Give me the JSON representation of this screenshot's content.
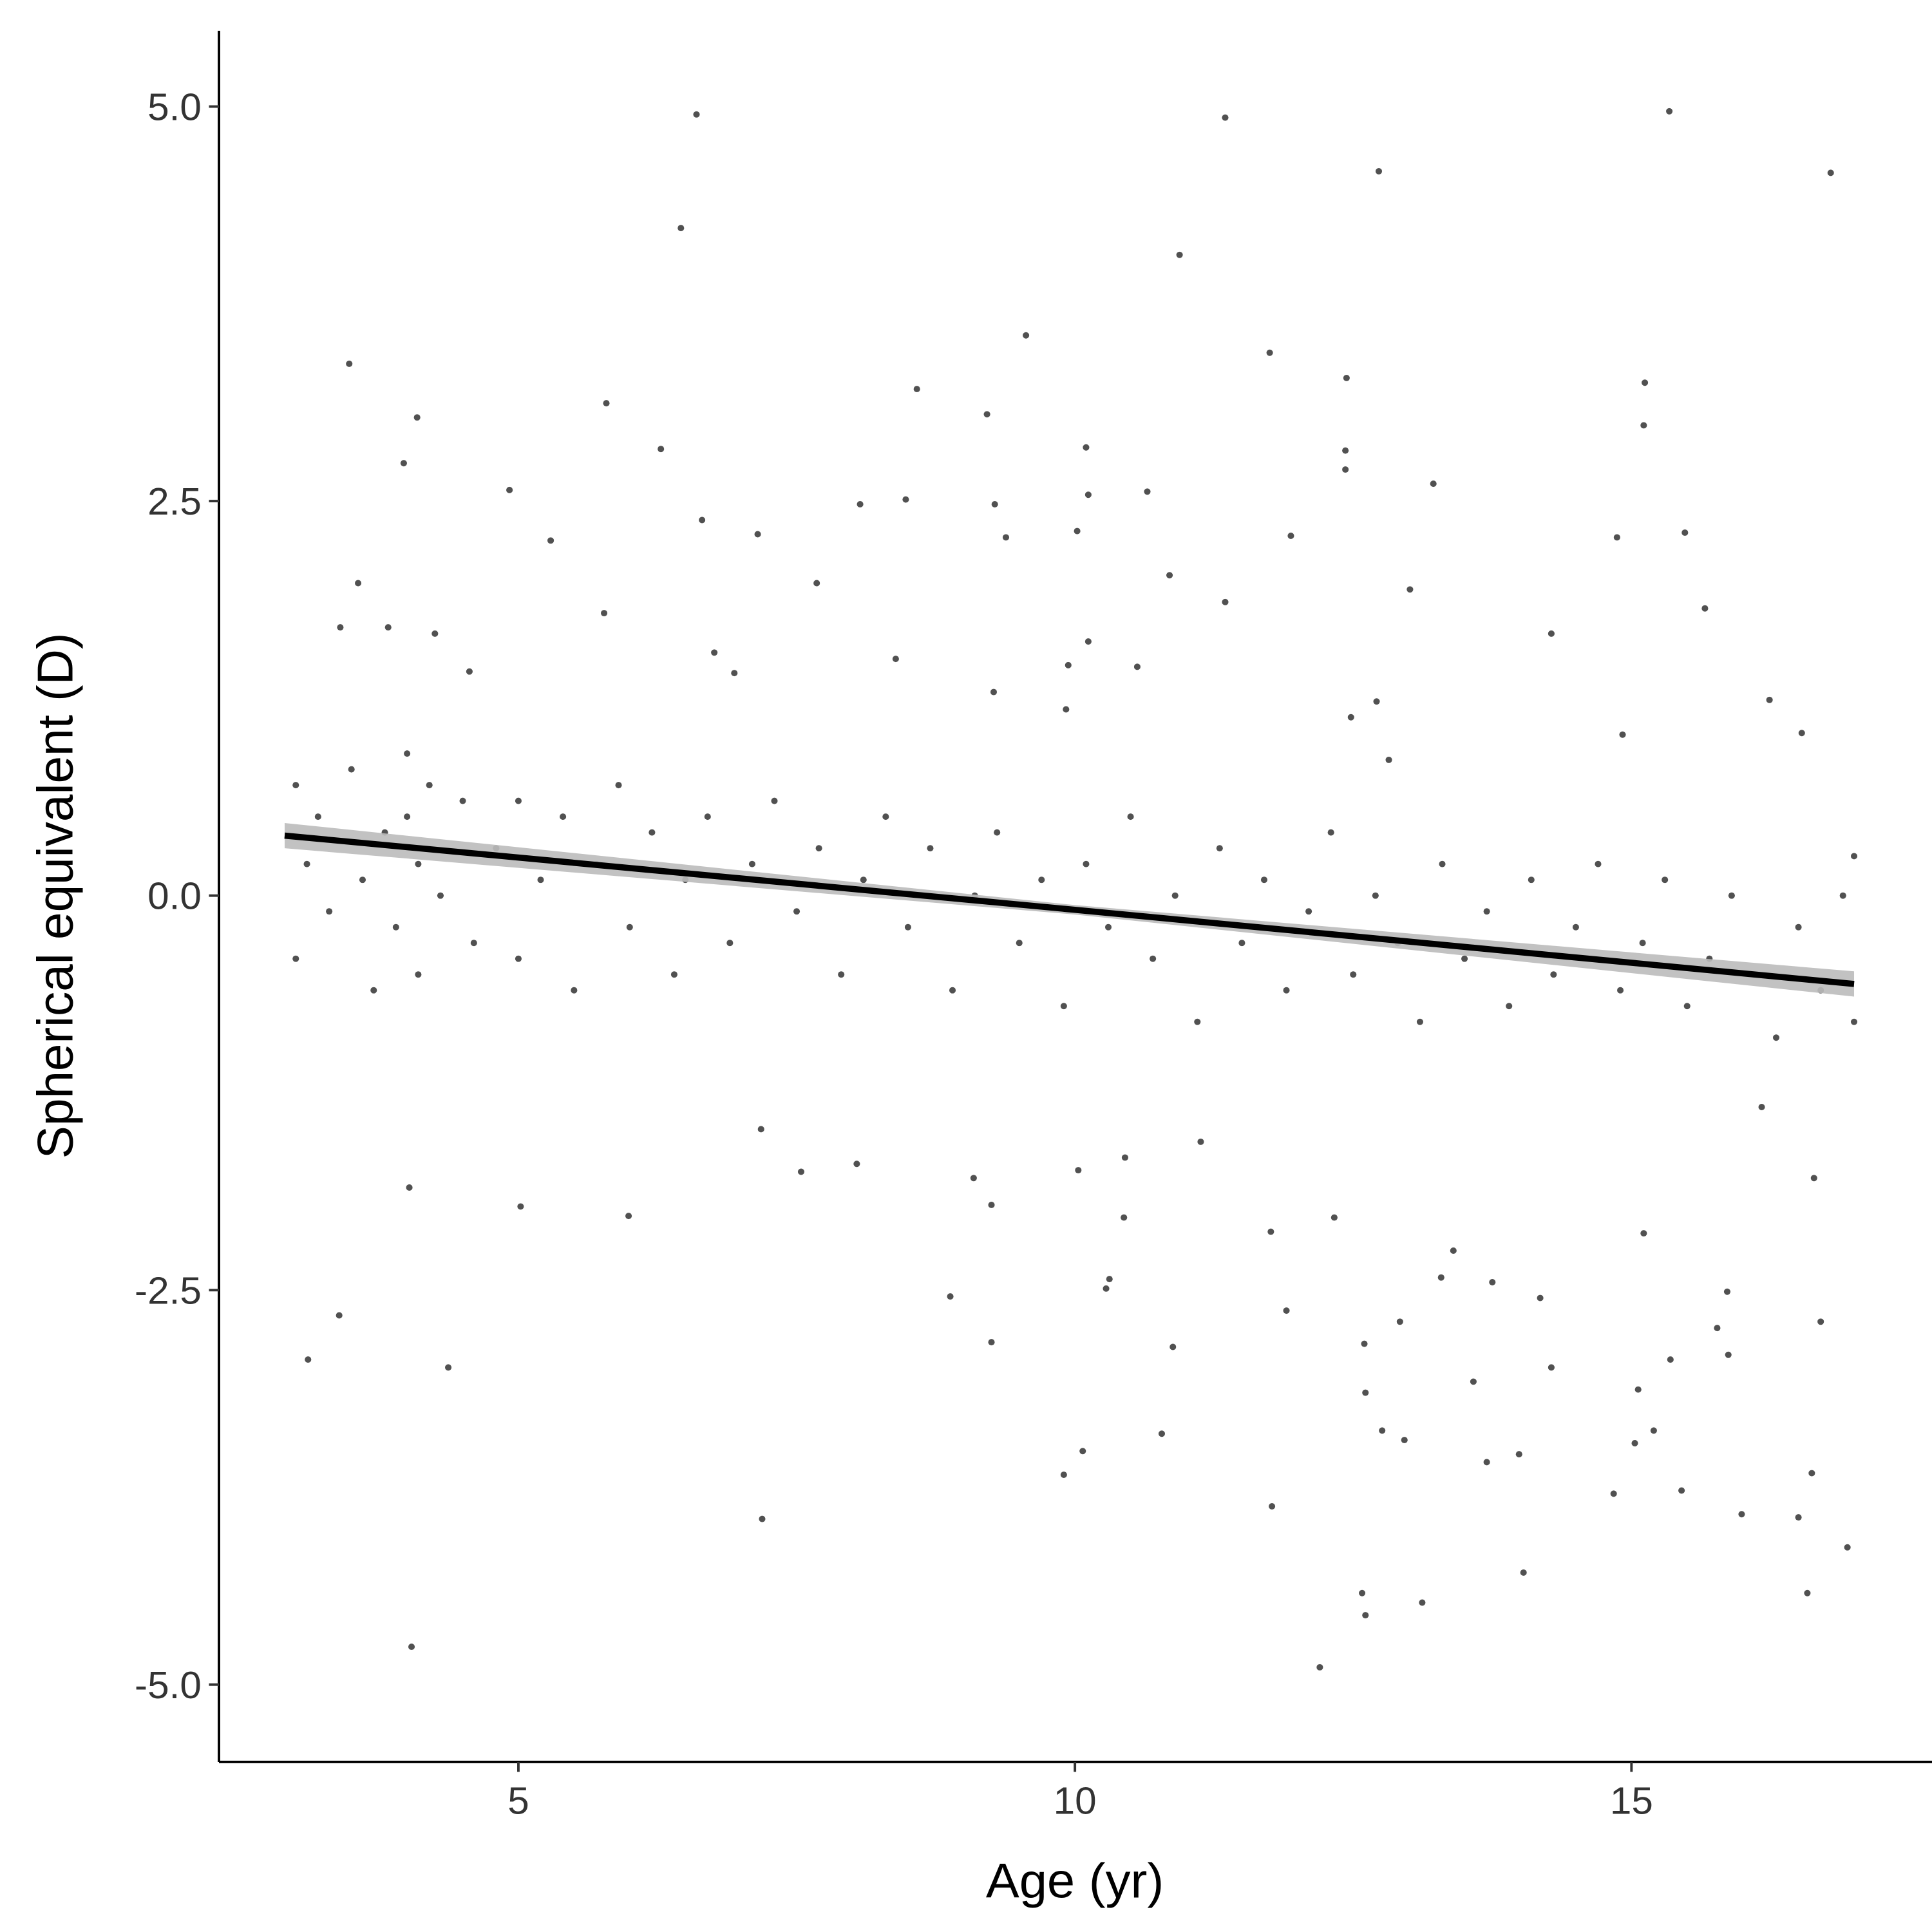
{
  "chart_data": {
    "type": "scatter",
    "xlabel": "Age (yr)",
    "ylabel": "Spherical equivalent (D)",
    "xlim": [
      2.31,
      17.7
    ],
    "ylim": [
      -5.49,
      5.48
    ],
    "xticks": [
      5,
      10,
      15
    ],
    "yticks": [
      {
        "value": 5,
        "label": "5.0"
      },
      {
        "value": 2.5,
        "label": "2.5"
      },
      {
        "value": 0,
        "label": "0.0"
      },
      {
        "value": -2.5,
        "label": "-2.5"
      },
      {
        "value": -5,
        "label": "-5.0"
      }
    ],
    "grid": false,
    "color": "#333333",
    "line_color": "#000000",
    "band_color": "#bbbbbb",
    "x": [
      6.6,
      11.35,
      15.34,
      12.73,
      16.79,
      6.46,
      10.94,
      9.56,
      3.48,
      11.75,
      12.44,
      15.12,
      8.58,
      5.79,
      4.09,
      9.21,
      15.11,
      6.28,
      10.1,
      12.43,
      12.43,
      3.97,
      13.22,
      4.92,
      10.65,
      10.12,
      8.48,
      8.07,
      9.28,
      6.65,
      10.02,
      7.15,
      14.87,
      15.48,
      11.94,
      5.29,
      9.38,
      3.56,
      10.85,
      7.68,
      13.01,
      11.35,
      15.66,
      5.77,
      14.28,
      3.4,
      3.83,
      4.25,
      10.12,
      6.76,
      9.94,
      10.56,
      8.39,
      6.94,
      4.56,
      12.71,
      16.24,
      9.27,
      14.92,
      16.53,
      12.48,
      9.92,
      12.82,
      3.11,
      3.39,
      4.37,
      4.04,
      4.02,
      5.02,
      5.99,
      7.19,
      7.54,
      7.18,
      8.04,
      8.88,
      9.09,
      9.25,
      9.25,
      9.9,
      10.07,
      10.03,
      10.28,
      10.31,
      10.44,
      10.45,
      10.78,
      10.88,
      11.13,
      11.76,
      11.77,
      11.9,
      12.2,
      12.33,
      12.58,
      12.61,
      12.61,
      12.6,
      12.76,
      12.96,
      12.92,
      13.12,
      13.29,
      13.4,
      13.58,
      13.7,
      13.75,
      13.99,
      14.03,
      14.18,
      14.28,
      14.84,
      15.03,
      15.06,
      15.2,
      15.11,
      15.35,
      15.45,
      15.77,
      15.86,
      15.87,
      15.99,
      16.5,
      16.58,
      16.62,
      16.7,
      16.94,
      16.64,
      16.17,
      3.0,
      3.0,
      3.1,
      3.2,
      3.3,
      3.5,
      3.6,
      3.7,
      3.8,
      3.9,
      4.0,
      4.0,
      4.1,
      4.1,
      4.2,
      4.3,
      4.5,
      4.6,
      4.8,
      5.0,
      5.0,
      5.2,
      5.4,
      5.5,
      5.7,
      5.9,
      6.0,
      6.2,
      6.4,
      6.5,
      6.7,
      6.9,
      7.1,
      7.3,
      7.5,
      7.7,
      7.9,
      8.1,
      8.3,
      8.5,
      8.7,
      8.9,
      9.1,
      9.3,
      9.5,
      9.7,
      9.9,
      10.1,
      10.3,
      10.5,
      10.7,
      10.9,
      11.1,
      11.3,
      11.5,
      11.7,
      11.9,
      12.1,
      12.3,
      12.5,
      12.7,
      12.9,
      13.1,
      13.3,
      13.5,
      13.7,
      13.9,
      14.1,
      14.3,
      14.5,
      14.7,
      14.9,
      15.1,
      15.3,
      15.5,
      15.7,
      15.9,
      16.1,
      16.3,
      16.5,
      16.7,
      16.9,
      17.0,
      17.0
    ],
    "y": [
      4.95,
      4.93,
      4.97,
      4.59,
      4.58,
      4.23,
      4.06,
      3.55,
      3.37,
      3.44,
      3.28,
      3.25,
      3.21,
      3.12,
      3.03,
      3.05,
      2.98,
      2.83,
      2.84,
      2.82,
      2.7,
      2.74,
      2.61,
      2.57,
      2.56,
      2.54,
      2.51,
      2.48,
      2.48,
      2.38,
      2.31,
      2.29,
      2.27,
      2.3,
      2.28,
      2.25,
      2.27,
      1.98,
      2.03,
      1.98,
      1.94,
      1.86,
      1.82,
      1.79,
      1.66,
      1.7,
      1.7,
      1.66,
      1.61,
      1.54,
      1.46,
      1.45,
      1.5,
      1.41,
      1.42,
      1.23,
      1.24,
      1.29,
      1.02,
      1.03,
      1.13,
      1.18,
      0.86,
      -2.94,
      -2.66,
      -2.99,
      -4.76,
      -1.85,
      -1.97,
      -2.03,
      -3.95,
      -1.75,
      -1.48,
      -1.7,
      -2.54,
      -1.79,
      -1.96,
      -2.83,
      -3.67,
      -3.52,
      -1.74,
      -2.49,
      -2.43,
      -2.04,
      -1.66,
      -3.41,
      -2.86,
      -1.56,
      -2.13,
      -3.87,
      -2.63,
      -4.89,
      -2.04,
      -4.42,
      -4.56,
      -3.15,
      -2.84,
      -3.39,
      -3.45,
      -2.7,
      -4.48,
      -2.42,
      -2.25,
      -3.08,
      -3.59,
      -2.45,
      -3.54,
      -4.29,
      -2.55,
      -2.99,
      -3.79,
      -3.47,
      -3.13,
      -3.39,
      -2.14,
      -2.94,
      -3.77,
      -2.74,
      -2.51,
      -2.91,
      -3.92,
      -3.94,
      -4.42,
      -3.66,
      -2.7,
      -4.13,
      -1.79,
      -1.34,
      0.7,
      -0.4,
      0.2,
      0.5,
      -0.1,
      0.8,
      0.1,
      -0.6,
      0.4,
      -0.2,
      0.5,
      0.9,
      0.2,
      -0.5,
      0.7,
      0.0,
      0.6,
      -0.3,
      0.3,
      0.6,
      -0.4,
      0.1,
      0.5,
      -0.6,
      0.2,
      0.7,
      -0.2,
      0.4,
      -0.5,
      0.1,
      0.5,
      -0.3,
      0.2,
      0.6,
      -0.1,
      0.3,
      -0.5,
      0.1,
      0.5,
      -0.2,
      0.3,
      -0.6,
      0.0,
      0.4,
      -0.3,
      0.1,
      -0.7,
      0.2,
      -0.2,
      0.5,
      -0.4,
      0.0,
      -0.8,
      0.3,
      -0.3,
      0.1,
      -0.6,
      -0.1,
      0.4,
      -0.5,
      0.0,
      -0.3,
      -0.8,
      0.2,
      -0.4,
      -0.1,
      -0.7,
      0.1,
      -0.5,
      -0.2,
      0.2,
      -0.6,
      -0.3,
      0.1,
      -0.7,
      -0.4,
      0.0,
      -0.5,
      -0.9,
      -0.2,
      -0.6,
      0.0,
      -0.8,
      0.25
    ],
    "fit": {
      "x": [
        2.9,
        10,
        17
      ],
      "y": [
        0.38,
        -0.09,
        -0.56
      ],
      "lower": [
        0.3,
        -0.12,
        -0.64
      ],
      "upper": [
        0.46,
        -0.06,
        -0.48
      ]
    }
  }
}
